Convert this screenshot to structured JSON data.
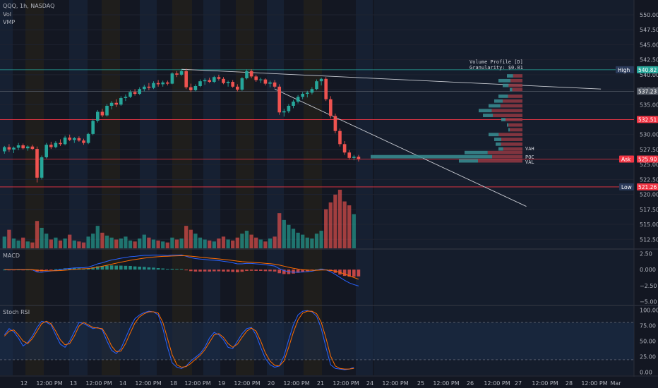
{
  "chart_data": {
    "type": "candlestick",
    "symbol_line": "QQQ, 1h, NASDAQ",
    "indicators": [
      "Vol",
      "VMP"
    ],
    "price_axis": {
      "min": 511,
      "max": 552,
      "ticks": [
        550.0,
        547.5,
        545.0,
        542.5,
        540.0,
        537.5,
        535.0,
        532.5,
        530.0,
        527.5,
        525.0,
        522.5,
        520.0,
        517.5,
        515.0,
        512.5
      ]
    },
    "price_tick_labels": [
      "550.00",
      "547.50",
      "545.00",
      "542.50",
      "540.00",
      "537.50",
      "535.00",
      "532.50",
      "530.00",
      "527.50",
      "525.00",
      "522.50",
      "520.00",
      "517.50",
      "515.00",
      "512.50"
    ],
    "time_axis_labels": [
      {
        "label": "12",
        "x": 0
      },
      {
        "label": "12:00 PM",
        "x": 1
      },
      {
        "label": "13",
        "x": 2
      },
      {
        "label": "12:00 PM",
        "x": 3
      },
      {
        "label": "14",
        "x": 4
      },
      {
        "label": "12:00 PM",
        "x": 5
      },
      {
        "label": "18",
        "x": 6
      },
      {
        "label": "12:00 PM",
        "x": 7
      },
      {
        "label": "19",
        "x": 8
      },
      {
        "label": "12:00 PM",
        "x": 9
      },
      {
        "label": "20",
        "x": 10
      },
      {
        "label": "12:00 PM",
        "x": 11
      },
      {
        "label": "21",
        "x": 12
      },
      {
        "label": "12:00 PM",
        "x": 13
      },
      {
        "label": "24",
        "x": 14
      },
      {
        "label": "12:00 PM",
        "x": 15
      },
      {
        "label": "25",
        "x": 16
      },
      {
        "label": "12:00 PM",
        "x": 17
      },
      {
        "label": "26",
        "x": 18
      },
      {
        "label": "12:00 PM",
        "x": 19
      },
      {
        "label": "27",
        "x": 20
      },
      {
        "label": "12:00 PM",
        "x": 21
      },
      {
        "label": "28",
        "x": 22
      },
      {
        "label": "12:00 PM",
        "x": 23
      },
      {
        "label": "Mar",
        "x": 24
      }
    ],
    "candles": [
      [
        527.2,
        528.1,
        526.8,
        527.9
      ],
      [
        527.9,
        528.4,
        527.1,
        527.5
      ],
      [
        527.5,
        528.0,
        526.9,
        527.8
      ],
      [
        527.8,
        528.6,
        527.4,
        528.2
      ],
      [
        528.2,
        528.5,
        527.5,
        527.7
      ],
      [
        527.7,
        528.2,
        527.3,
        528.0
      ],
      [
        528.0,
        528.3,
        527.4,
        527.6
      ],
      [
        527.6,
        528.0,
        522.0,
        522.8
      ],
      [
        522.8,
        526.5,
        522.5,
        526.2
      ],
      [
        526.2,
        528.6,
        526.0,
        528.3
      ],
      [
        528.3,
        528.8,
        527.6,
        527.9
      ],
      [
        527.9,
        528.9,
        527.7,
        528.6
      ],
      [
        528.6,
        529.2,
        528.1,
        528.4
      ],
      [
        528.4,
        529.8,
        528.2,
        529.5
      ],
      [
        529.5,
        530.0,
        528.9,
        529.1
      ],
      [
        529.1,
        529.6,
        528.6,
        529.4
      ],
      [
        529.4,
        529.7,
        528.8,
        529.0
      ],
      [
        529.0,
        529.3,
        528.3,
        528.6
      ],
      [
        528.6,
        530.3,
        528.4,
        530.1
      ],
      [
        530.1,
        532.6,
        529.9,
        532.3
      ],
      [
        532.3,
        534.1,
        532.0,
        533.8
      ],
      [
        533.8,
        534.3,
        532.9,
        533.2
      ],
      [
        533.2,
        535.1,
        533.0,
        534.8
      ],
      [
        534.8,
        535.6,
        534.2,
        535.3
      ],
      [
        535.3,
        535.9,
        534.6,
        535.0
      ],
      [
        535.0,
        536.4,
        534.8,
        536.1
      ],
      [
        536.1,
        536.7,
        535.6,
        536.3
      ],
      [
        536.3,
        537.4,
        536.1,
        537.1
      ],
      [
        537.1,
        537.6,
        536.5,
        536.8
      ],
      [
        536.8,
        537.9,
        536.6,
        537.6
      ],
      [
        537.6,
        538.3,
        537.2,
        538.0
      ],
      [
        538.0,
        538.6,
        537.4,
        537.8
      ],
      [
        537.8,
        538.9,
        537.6,
        538.6
      ],
      [
        538.6,
        539.1,
        538.0,
        538.4
      ],
      [
        538.4,
        539.0,
        538.0,
        538.7
      ],
      [
        538.7,
        539.0,
        538.2,
        538.5
      ],
      [
        538.5,
        540.4,
        538.4,
        540.2
      ],
      [
        540.2,
        540.6,
        539.6,
        540.0
      ],
      [
        540.0,
        540.9,
        539.8,
        540.6
      ],
      [
        540.6,
        541.0,
        537.6,
        537.9
      ],
      [
        537.9,
        538.5,
        537.1,
        537.4
      ],
      [
        537.4,
        538.4,
        537.2,
        538.1
      ],
      [
        538.1,
        539.2,
        537.9,
        538.9
      ],
      [
        538.9,
        539.4,
        538.3,
        539.1
      ],
      [
        539.1,
        539.5,
        538.6,
        538.8
      ],
      [
        538.8,
        539.8,
        538.6,
        539.6
      ],
      [
        539.6,
        540.0,
        539.0,
        539.3
      ],
      [
        539.3,
        539.6,
        538.4,
        538.6
      ],
      [
        538.6,
        539.0,
        538.0,
        538.8
      ],
      [
        538.8,
        539.1,
        537.8,
        538.0
      ],
      [
        538.0,
        538.4,
        537.2,
        537.5
      ],
      [
        537.5,
        539.6,
        537.3,
        539.4
      ],
      [
        539.4,
        540.9,
        539.2,
        540.6
      ],
      [
        540.6,
        540.9,
        539.4,
        539.7
      ],
      [
        539.7,
        540.0,
        538.8,
        539.1
      ],
      [
        539.1,
        539.5,
        538.6,
        539.2
      ],
      [
        539.2,
        539.4,
        538.2,
        538.5
      ],
      [
        538.5,
        539.0,
        537.9,
        538.7
      ],
      [
        538.7,
        539.1,
        537.7,
        538.0
      ],
      [
        538.0,
        538.4,
        533.3,
        533.7
      ],
      [
        533.7,
        534.3,
        533.0,
        533.9
      ],
      [
        533.9,
        535.1,
        533.6,
        534.8
      ],
      [
        534.8,
        535.8,
        534.4,
        535.5
      ],
      [
        535.5,
        536.6,
        535.2,
        536.3
      ],
      [
        536.3,
        537.1,
        535.9,
        536.8
      ],
      [
        536.8,
        537.3,
        536.2,
        537.0
      ],
      [
        537.0,
        537.9,
        536.7,
        537.6
      ],
      [
        537.6,
        539.2,
        537.4,
        538.9
      ],
      [
        538.9,
        539.5,
        538.2,
        539.3
      ],
      [
        539.3,
        539.6,
        535.6,
        535.9
      ],
      [
        535.9,
        536.4,
        532.7,
        533.1
      ],
      [
        533.1,
        533.5,
        530.2,
        530.6
      ],
      [
        530.6,
        531.0,
        528.0,
        528.4
      ],
      [
        528.4,
        528.9,
        526.6,
        527.0
      ],
      [
        527.0,
        527.4,
        525.8,
        526.1
      ],
      [
        526.1,
        526.6,
        525.7,
        526.3
      ],
      [
        526.3,
        526.6,
        525.5,
        525.9
      ]
    ],
    "volume": [
      24,
      38,
      20,
      16,
      22,
      14,
      12,
      56,
      42,
      30,
      18,
      22,
      16,
      20,
      28,
      16,
      14,
      12,
      24,
      30,
      46,
      32,
      26,
      22,
      18,
      20,
      24,
      16,
      14,
      20,
      28,
      22,
      18,
      16,
      14,
      12,
      22,
      18,
      20,
      46,
      38,
      30,
      22,
      18,
      16,
      14,
      20,
      24,
      18,
      16,
      22,
      30,
      36,
      28,
      22,
      18,
      14,
      20,
      24,
      72,
      58,
      48,
      40,
      32,
      28,
      22,
      20,
      30,
      36,
      80,
      94,
      110,
      120,
      96,
      88,
      70
    ],
    "volume_range": [
      0,
      130
    ],
    "horizontal_levels": [
      {
        "price": 540.82,
        "color": "#26a69a",
        "tag": "540.82",
        "side_label": "High"
      },
      {
        "price": 537.23,
        "color": "#555b66",
        "tag": "537.23",
        "side_label": ""
      },
      {
        "price": 532.51,
        "color": "#f23645",
        "tag": "532.51",
        "side_label": ""
      },
      {
        "price": 525.9,
        "color": "#f23645",
        "tag": "525.90",
        "side_label": "Ask"
      },
      {
        "price": 521.26,
        "color": "#f23645",
        "tag": "521.26",
        "side_label": "Low"
      }
    ],
    "trendlines": [
      {
        "from": [
          38,
          540.9
        ],
        "to": [
          128,
          537.6
        ],
        "color": "#c8cbd2"
      },
      {
        "from": [
          58,
          537.6
        ],
        "to": [
          112,
          518.0
        ],
        "color": "#c8cbd2"
      }
    ],
    "volume_profile": {
      "title": "Volume Profile [D]",
      "granularity": "Granularity: $0.01",
      "labels": [
        "VAH",
        "POC",
        "VAL"
      ],
      "rows": [
        {
          "price": 539.8,
          "len": 22,
          "up": 0.4
        },
        {
          "price": 539.0,
          "len": 34,
          "up": 0.5
        },
        {
          "price": 538.2,
          "len": 28,
          "up": 0.3
        },
        {
          "price": 537.5,
          "len": 18,
          "up": 0.2
        },
        {
          "price": 536.4,
          "len": 34,
          "up": 0.4
        },
        {
          "price": 535.6,
          "len": 40,
          "up": 0.3
        },
        {
          "price": 534.8,
          "len": 48,
          "up": 0.35
        },
        {
          "price": 534.0,
          "len": 62,
          "up": 0.3
        },
        {
          "price": 533.2,
          "len": 56,
          "up": 0.25
        },
        {
          "price": 532.5,
          "len": 30,
          "up": 0.2
        },
        {
          "price": 531.6,
          "len": 22,
          "up": 0.1
        },
        {
          "price": 530.8,
          "len": 20,
          "up": 0.1
        },
        {
          "price": 530.0,
          "len": 48,
          "up": 0.3
        },
        {
          "price": 529.2,
          "len": 40,
          "up": 0.25
        },
        {
          "price": 528.4,
          "len": 38,
          "up": 0.2
        },
        {
          "price": 527.6,
          "len": 34,
          "up": 0.2
        },
        {
          "price": 527.0,
          "len": 82,
          "up": 0.4
        },
        {
          "price": 526.3,
          "len": 215,
          "up": 0.8
        },
        {
          "price": 525.6,
          "len": 90,
          "up": 0.3
        }
      ]
    },
    "macd": {
      "label": "MACD",
      "range": [
        -5.5,
        3.0
      ],
      "ticks": [
        2.5,
        0.0,
        -2.5,
        -5.0
      ],
      "tick_labels": [
        "2.50",
        "0.000",
        "−2.50",
        "−5.00"
      ]
    },
    "stoch_rsi": {
      "label": "Stoch RSI",
      "range": [
        -5,
        105
      ],
      "ticks": [
        100,
        75,
        50,
        25,
        0
      ],
      "tick_labels": [
        "100.00",
        "75.00",
        "50.00",
        "25.00",
        "0.00"
      ],
      "k": [
        60,
        70,
        65,
        55,
        42,
        48,
        58,
        72,
        82,
        80,
        76,
        60,
        45,
        40,
        50,
        65,
        80,
        78,
        74,
        70,
        72,
        68,
        50,
        35,
        30,
        38,
        55,
        72,
        86,
        92,
        96,
        98,
        97,
        92,
        70,
        40,
        15,
        8,
        6,
        10,
        18,
        24,
        30,
        40,
        55,
        64,
        60,
        52,
        40,
        38,
        50,
        62,
        70,
        72,
        60,
        40,
        22,
        12,
        8,
        10,
        26,
        52,
        76,
        92,
        98,
        99,
        97,
        90,
        70,
        40,
        12,
        6,
        5,
        4,
        5,
        8
      ],
      "d": [
        58,
        66,
        68,
        60,
        50,
        46,
        54,
        66,
        78,
        82,
        78,
        66,
        52,
        44,
        46,
        58,
        74,
        80,
        76,
        72,
        71,
        70,
        58,
        42,
        33,
        34,
        46,
        63,
        79,
        89,
        94,
        97,
        97,
        95,
        80,
        54,
        28,
        12,
        8,
        9,
        14,
        21,
        27,
        36,
        48,
        60,
        62,
        56,
        46,
        40,
        45,
        56,
        66,
        71,
        66,
        50,
        31,
        18,
        11,
        10,
        18,
        40,
        64,
        84,
        95,
        98,
        98,
        94,
        80,
        55,
        26,
        10,
        6,
        5,
        5,
        6
      ]
    }
  },
  "colors": {
    "up": "#26a69a",
    "down": "#ef5350",
    "background": "#131722",
    "grid": "#1f2330",
    "session_blue": "#1a2840",
    "session_orange": "#2a2418",
    "band": "#1c2d4a"
  }
}
